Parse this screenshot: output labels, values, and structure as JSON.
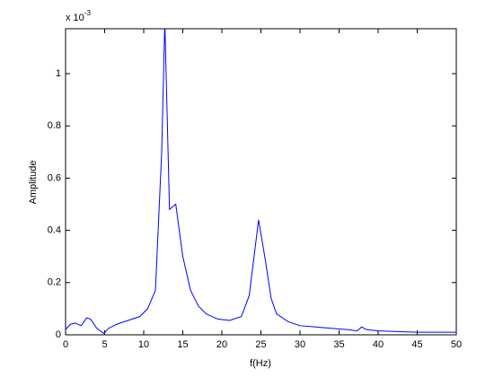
{
  "chart_data": {
    "type": "line",
    "xlabel": "f(Hz)",
    "ylabel": "Amplitude",
    "y_multiplier": {
      "base": "x 10",
      "exponent": "-3"
    },
    "xlim": [
      0,
      50
    ],
    "xticks": [
      0,
      5,
      10,
      15,
      20,
      25,
      30,
      35,
      40,
      45,
      50
    ],
    "ylim": [
      0,
      1.172
    ],
    "yticks": [
      0,
      0.2,
      0.4,
      0.6,
      0.8,
      1
    ],
    "grid": false,
    "series": [
      {
        "color": "#0000ff",
        "x": [
          0,
          0.6,
          1.2,
          2,
          2.7,
          3.2,
          4,
          4.9,
          5.5,
          6.5,
          8,
          9.5,
          10.5,
          11.5,
          12.3,
          12.7,
          13.3,
          14.1,
          15,
          16,
          17,
          18,
          19.5,
          21,
          22.5,
          23.5,
          24.7,
          25.6,
          26.3,
          27,
          28.5,
          30,
          32,
          34,
          36,
          37.3,
          37.9,
          38.5,
          40,
          45,
          50
        ],
        "values": [
          0.02,
          0.04,
          0.045,
          0.035,
          0.065,
          0.06,
          0.025,
          0.005,
          0.025,
          0.04,
          0.055,
          0.07,
          0.1,
          0.17,
          0.7,
          1.2,
          0.48,
          0.5,
          0.3,
          0.17,
          0.11,
          0.08,
          0.06,
          0.055,
          0.07,
          0.15,
          0.44,
          0.28,
          0.14,
          0.08,
          0.05,
          0.035,
          0.03,
          0.025,
          0.02,
          0.015,
          0.03,
          0.02,
          0.015,
          0.01,
          0.01
        ]
      }
    ]
  }
}
